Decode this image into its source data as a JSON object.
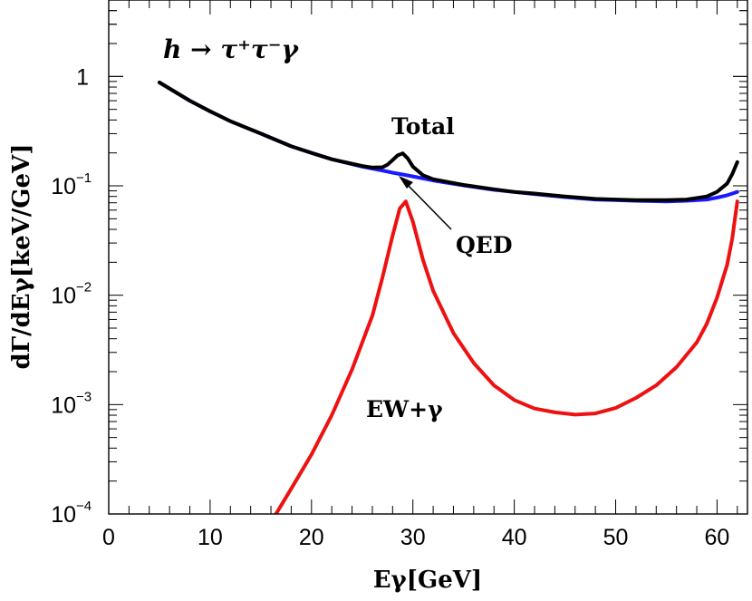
{
  "chart_data": {
    "type": "line",
    "title": "h → τ⁺τ⁻γ",
    "xlabel": "Eγ[GeV]",
    "ylabel": "dΓ/dEγ[keV/GeV]",
    "xlim": [
      0,
      63
    ],
    "ylim": [
      0.0001,
      5
    ],
    "yscale": "log",
    "x_ticks": [
      0,
      10,
      20,
      30,
      40,
      50,
      60
    ],
    "y_ticks": [
      {
        "value": 1,
        "base": "1",
        "exp": ""
      },
      {
        "value": 0.1,
        "base": "10",
        "exp": "−1"
      },
      {
        "value": 0.01,
        "base": "10",
        "exp": "−2"
      },
      {
        "value": 0.001,
        "base": "10",
        "exp": "−3"
      },
      {
        "value": 0.0001,
        "base": "10",
        "exp": "−4"
      }
    ],
    "grid": false,
    "series": [
      {
        "name": "QED",
        "color": "#1a1aff",
        "x": [
          5,
          8,
          10,
          12,
          15,
          18,
          20,
          22,
          25,
          27,
          28,
          29,
          30,
          32,
          35,
          38,
          40,
          42,
          45,
          48,
          50,
          52,
          55,
          57,
          59,
          60,
          61,
          62
        ],
        "y": [
          0.88,
          0.6,
          0.48,
          0.39,
          0.3,
          0.23,
          0.2,
          0.175,
          0.15,
          0.138,
          0.132,
          0.127,
          0.122,
          0.112,
          0.101,
          0.092,
          0.088,
          0.084,
          0.079,
          0.075,
          0.074,
          0.073,
          0.072,
          0.073,
          0.075,
          0.078,
          0.082,
          0.088
        ]
      },
      {
        "name": "Total",
        "color": "#000000",
        "x": [
          5,
          8,
          10,
          12,
          15,
          18,
          20,
          22,
          25,
          26,
          27,
          27.5,
          28,
          28.5,
          29,
          29.5,
          30,
          31,
          32,
          35,
          38,
          40,
          42,
          45,
          48,
          50,
          52,
          55,
          57,
          59,
          60,
          61,
          61.5,
          62
        ],
        "y": [
          0.88,
          0.6,
          0.48,
          0.39,
          0.3,
          0.23,
          0.2,
          0.175,
          0.152,
          0.147,
          0.148,
          0.156,
          0.172,
          0.19,
          0.198,
          0.178,
          0.15,
          0.125,
          0.115,
          0.102,
          0.093,
          0.088,
          0.085,
          0.08,
          0.076,
          0.075,
          0.074,
          0.074,
          0.075,
          0.08,
          0.088,
          0.105,
          0.128,
          0.165
        ]
      },
      {
        "name": "EW+γ",
        "color": "#ee1111",
        "x": [
          16.5,
          18,
          20,
          22,
          24,
          26,
          27,
          28,
          28.7,
          29.3,
          30,
          31,
          32,
          34,
          36,
          38,
          40,
          42,
          44,
          46,
          48,
          50,
          52,
          54,
          56,
          58,
          59,
          60,
          61,
          61.5,
          62
        ],
        "y": [
          0.0001,
          0.00017,
          0.00035,
          0.0008,
          0.0021,
          0.0065,
          0.0145,
          0.035,
          0.062,
          0.072,
          0.047,
          0.021,
          0.011,
          0.0045,
          0.0024,
          0.0015,
          0.0011,
          0.00092,
          0.00085,
          0.00081,
          0.00083,
          0.00093,
          0.00115,
          0.0015,
          0.0022,
          0.0037,
          0.0055,
          0.0095,
          0.019,
          0.033,
          0.072
        ]
      }
    ],
    "annotations": [
      {
        "text": "h → τ⁺τ⁻γ"
      },
      {
        "text": "Total"
      },
      {
        "text": "QED"
      },
      {
        "text": "EW+γ"
      }
    ]
  }
}
